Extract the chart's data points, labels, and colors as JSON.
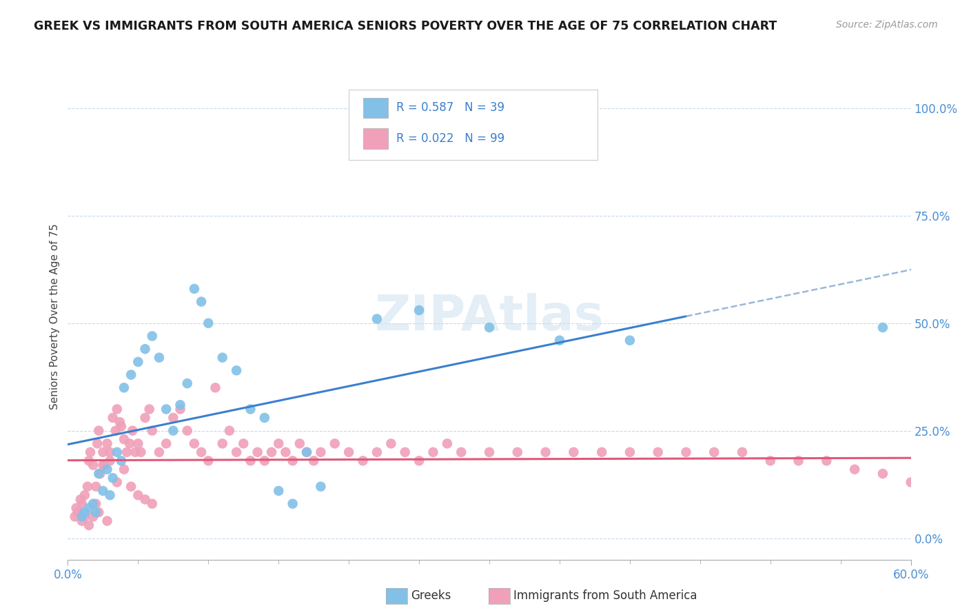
{
  "title": "GREEK VS IMMIGRANTS FROM SOUTH AMERICA SENIORS POVERTY OVER THE AGE OF 75 CORRELATION CHART",
  "source": "Source: ZipAtlas.com",
  "ylabel": "Seniors Poverty Over the Age of 75",
  "xlim": [
    0.0,
    0.6
  ],
  "ylim": [
    -0.05,
    1.08
  ],
  "yticks": [
    0.0,
    0.25,
    0.5,
    0.75,
    1.0
  ],
  "ytick_labels": [
    "0.0%",
    "25.0%",
    "50.0%",
    "75.0%",
    "100.0%"
  ],
  "xtick_labels": [
    "0.0%",
    "60.0%"
  ],
  "greek_R": 0.587,
  "greek_N": 39,
  "sa_R": 0.022,
  "sa_N": 99,
  "greek_color": "#82c0e8",
  "sa_color": "#f0a0b8",
  "greek_line_color": "#3a7fce",
  "sa_line_color": "#e05878",
  "dashed_color": "#9ab8d8",
  "watermark_color": "#cce0f0",
  "greek_label": "Greeks",
  "sa_label": "Immigrants from South America",
  "greek_scatter_x": [
    0.01,
    0.012,
    0.015,
    0.018,
    0.02,
    0.022,
    0.025,
    0.028,
    0.03,
    0.032,
    0.035,
    0.038,
    0.04,
    0.045,
    0.05,
    0.055,
    0.06,
    0.065,
    0.07,
    0.075,
    0.08,
    0.085,
    0.09,
    0.095,
    0.1,
    0.11,
    0.12,
    0.13,
    0.14,
    0.15,
    0.16,
    0.17,
    0.18,
    0.22,
    0.25,
    0.3,
    0.35,
    0.4,
    0.58
  ],
  "greek_scatter_y": [
    0.05,
    0.06,
    0.07,
    0.08,
    0.06,
    0.15,
    0.11,
    0.16,
    0.1,
    0.14,
    0.2,
    0.18,
    0.35,
    0.38,
    0.41,
    0.44,
    0.47,
    0.42,
    0.3,
    0.25,
    0.31,
    0.36,
    0.58,
    0.55,
    0.5,
    0.42,
    0.39,
    0.3,
    0.28,
    0.11,
    0.08,
    0.2,
    0.12,
    0.51,
    0.53,
    0.49,
    0.46,
    0.46,
    0.49
  ],
  "sa_scatter_x": [
    0.005,
    0.007,
    0.009,
    0.01,
    0.012,
    0.014,
    0.015,
    0.016,
    0.018,
    0.02,
    0.021,
    0.022,
    0.023,
    0.025,
    0.026,
    0.028,
    0.03,
    0.032,
    0.034,
    0.035,
    0.037,
    0.038,
    0.04,
    0.042,
    0.044,
    0.046,
    0.048,
    0.05,
    0.052,
    0.055,
    0.058,
    0.06,
    0.065,
    0.07,
    0.075,
    0.08,
    0.085,
    0.09,
    0.095,
    0.1,
    0.105,
    0.11,
    0.115,
    0.12,
    0.125,
    0.13,
    0.135,
    0.14,
    0.145,
    0.15,
    0.155,
    0.16,
    0.165,
    0.17,
    0.175,
    0.18,
    0.19,
    0.2,
    0.21,
    0.22,
    0.23,
    0.24,
    0.25,
    0.26,
    0.27,
    0.28,
    0.3,
    0.32,
    0.34,
    0.36,
    0.38,
    0.4,
    0.42,
    0.44,
    0.46,
    0.48,
    0.5,
    0.52,
    0.54,
    0.56,
    0.58,
    0.6,
    0.025,
    0.03,
    0.035,
    0.02,
    0.022,
    0.018,
    0.028,
    0.015,
    0.012,
    0.01,
    0.008,
    0.006,
    0.04,
    0.045,
    0.05,
    0.055,
    0.06
  ],
  "sa_scatter_y": [
    0.05,
    0.06,
    0.09,
    0.08,
    0.1,
    0.12,
    0.18,
    0.2,
    0.17,
    0.12,
    0.22,
    0.25,
    0.15,
    0.2,
    0.17,
    0.22,
    0.2,
    0.28,
    0.25,
    0.3,
    0.27,
    0.26,
    0.23,
    0.2,
    0.22,
    0.25,
    0.2,
    0.22,
    0.2,
    0.28,
    0.3,
    0.25,
    0.2,
    0.22,
    0.28,
    0.3,
    0.25,
    0.22,
    0.2,
    0.18,
    0.35,
    0.22,
    0.25,
    0.2,
    0.22,
    0.18,
    0.2,
    0.18,
    0.2,
    0.22,
    0.2,
    0.18,
    0.22,
    0.2,
    0.18,
    0.2,
    0.22,
    0.2,
    0.18,
    0.2,
    0.22,
    0.2,
    0.18,
    0.2,
    0.22,
    0.2,
    0.2,
    0.2,
    0.2,
    0.2,
    0.2,
    0.2,
    0.2,
    0.2,
    0.2,
    0.2,
    0.18,
    0.18,
    0.18,
    0.16,
    0.15,
    0.13,
    0.17,
    0.18,
    0.13,
    0.08,
    0.06,
    0.05,
    0.04,
    0.03,
    0.05,
    0.04,
    0.06,
    0.07,
    0.16,
    0.12,
    0.1,
    0.09,
    0.08
  ]
}
